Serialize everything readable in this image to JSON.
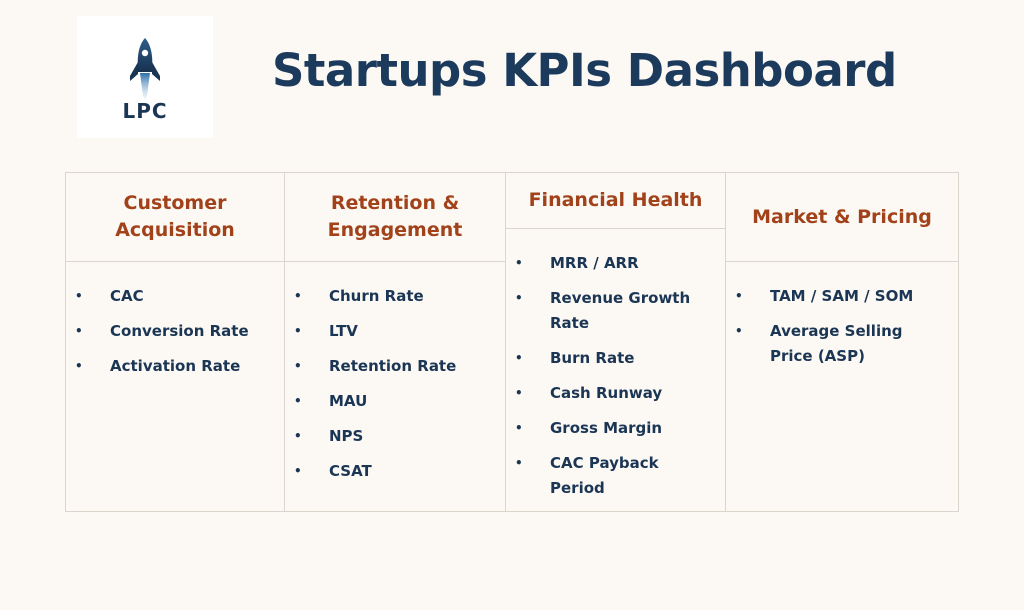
{
  "logo": {
    "text": "LPC",
    "icon": "rocket-icon"
  },
  "title": "Startups KPIs Dashboard",
  "columns": [
    {
      "heading": "Customer Acquisition",
      "items": [
        "CAC",
        "Conversion Rate",
        "Activation Rate"
      ]
    },
    {
      "heading": "Retention & Engagement",
      "items": [
        "Churn Rate",
        "LTV",
        "Retention Rate",
        "MAU",
        "NPS",
        "CSAT"
      ]
    },
    {
      "heading": "Financial Health",
      "items": [
        "MRR / ARR",
        "Revenue Growth Rate",
        "Burn Rate",
        "Cash Runway",
        "Gross Margin",
        "CAC Payback Period"
      ]
    },
    {
      "heading": "Market & Pricing",
      "items": [
        "TAM / SAM / SOM",
        "Average Selling Price (ASP)"
      ]
    }
  ],
  "colors": {
    "title": "#1b3a5c",
    "heading": "#a2421a",
    "text": "#1b3554",
    "background": "#fcf9f4"
  }
}
